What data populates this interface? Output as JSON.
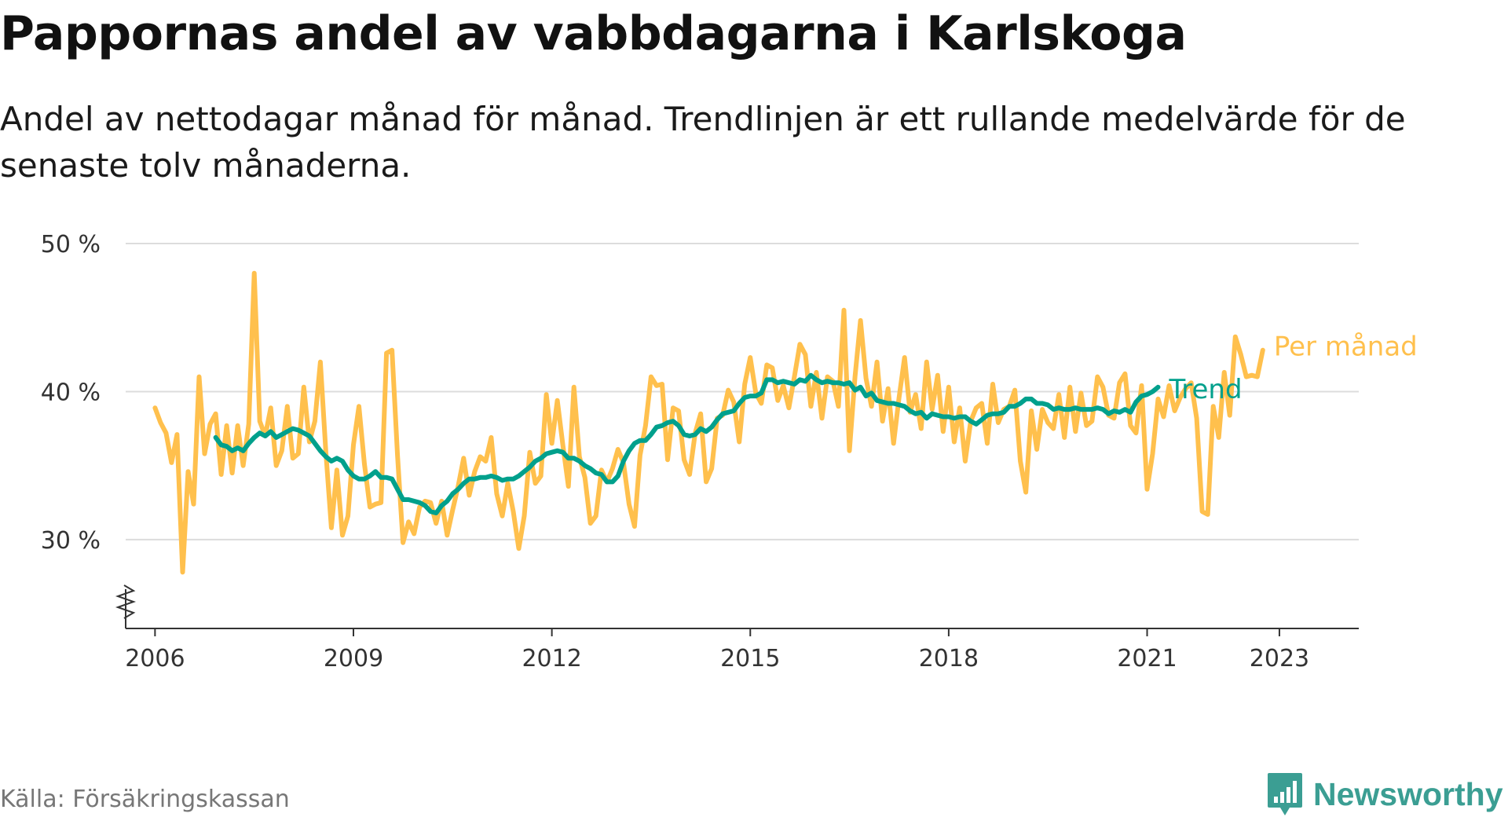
{
  "title": "Pappornas andel av vabbdagarna i Karlskoga",
  "subtitle": "Andel av nettodagar månad för månad. Trendlinjen är ett rullande medelvärde för de senaste tolv månaderna.",
  "source": "Källa: Försäkringskassan",
  "brand": {
    "name": "Newsworthy",
    "icon": "bar-chart-speech-bubble-icon"
  },
  "colors": {
    "monthly": "#ffc04d",
    "trend": "#00a08c",
    "grid": "#dcdcdc",
    "axis": "#333333"
  },
  "chart_data": {
    "type": "line",
    "ylim": [
      24,
      50
    ],
    "yticks": [
      {
        "value": 30,
        "label": "30 %"
      },
      {
        "value": 40,
        "label": "40 %"
      },
      {
        "value": 50,
        "label": "50 %"
      }
    ],
    "xlim": [
      2005.2,
      2024.2
    ],
    "xticks": [
      {
        "value": 2006,
        "label": "2006"
      },
      {
        "value": 2009,
        "label": "2009"
      },
      {
        "value": 2012,
        "label": "2012"
      },
      {
        "value": 2015,
        "label": "2015"
      },
      {
        "value": 2018,
        "label": "2018"
      },
      {
        "value": 2021,
        "label": "2021"
      },
      {
        "value": 2023,
        "label": "2023"
      }
    ],
    "grid": true,
    "axis_break": true,
    "series": [
      {
        "name": "Per månad",
        "start": 2006.0,
        "step": 0.08333,
        "values": [
          38.9,
          37.9,
          37.2,
          35.2,
          37.1,
          27.8,
          34.6,
          32.4,
          41.0,
          35.8,
          37.8,
          38.5,
          34.4,
          37.7,
          34.5,
          37.7,
          35.0,
          37.8,
          48.0,
          38.0,
          37.0,
          38.9,
          35.0,
          36.0,
          39.0,
          35.5,
          35.8,
          40.3,
          36.6,
          38.0,
          42.0,
          35.9,
          30.8,
          34.7,
          30.3,
          31.6,
          36.4,
          39.0,
          35.1,
          32.2,
          32.4,
          32.5,
          42.6,
          42.8,
          35.7,
          29.8,
          31.2,
          30.4,
          32.2,
          32.6,
          32.5,
          31.1,
          32.6,
          30.3,
          32.0,
          33.6,
          35.5,
          33.0,
          34.6,
          35.6,
          35.3,
          36.9,
          33.1,
          31.6,
          33.8,
          31.9,
          29.4,
          31.6,
          35.9,
          33.8,
          34.3,
          39.8,
          36.5,
          39.4,
          36.4,
          33.6,
          40.3,
          35.6,
          34.2,
          31.1,
          31.6,
          34.7,
          33.9,
          34.8,
          36.1,
          35.2,
          32.4,
          30.9,
          35.7,
          37.7,
          41.0,
          40.4,
          40.5,
          35.4,
          38.9,
          38.7,
          35.4,
          34.4,
          37.2,
          38.5,
          33.9,
          34.8,
          38.2,
          38.4,
          40.1,
          39.3,
          36.6,
          40.5,
          42.3,
          39.9,
          39.2,
          41.8,
          41.6,
          39.4,
          40.4,
          38.9,
          41.0,
          43.2,
          42.5,
          39.0,
          41.3,
          38.2,
          41.0,
          40.7,
          39.0,
          45.5,
          36.0,
          41.0,
          44.8,
          40.9,
          39.0,
          42.0,
          38.0,
          40.2,
          36.5,
          39.6,
          42.3,
          38.6,
          39.8,
          37.5,
          42.0,
          38.8,
          41.1,
          37.3,
          40.3,
          36.6,
          38.9,
          35.3,
          38.0,
          38.9,
          39.2,
          36.5,
          40.5,
          37.9,
          38.8,
          39.0,
          40.1,
          35.3,
          33.2,
          38.7,
          36.1,
          38.8,
          37.9,
          37.5,
          39.8,
          36.9,
          40.3,
          37.3,
          39.9,
          37.7,
          38.0,
          41.0,
          40.3,
          38.4,
          38.2,
          40.6,
          41.2,
          37.7,
          37.2,
          40.4,
          33.4,
          35.8,
          39.5,
          38.3,
          40.4,
          38.7,
          39.6,
          40.2,
          40.6,
          38.2,
          31.9,
          31.7,
          39.0,
          36.9,
          41.3,
          38.4,
          43.7,
          42.5,
          41.0,
          41.1,
          41.0,
          42.8
        ]
      },
      {
        "name": "Trend",
        "start": 2006.9167,
        "step": 0.08333,
        "values": [
          36.9,
          36.4,
          36.3,
          36.0,
          36.2,
          36.0,
          36.5,
          36.9,
          37.2,
          37.0,
          37.3,
          36.9,
          37.1,
          37.3,
          37.5,
          37.4,
          37.2,
          37.0,
          36.5,
          36.0,
          35.6,
          35.3,
          35.5,
          35.3,
          34.7,
          34.3,
          34.1,
          34.1,
          34.3,
          34.6,
          34.2,
          34.2,
          34.1,
          33.4,
          32.7,
          32.7,
          32.6,
          32.5,
          32.3,
          31.9,
          31.8,
          32.3,
          32.6,
          33.1,
          33.4,
          33.8,
          34.1,
          34.1,
          34.2,
          34.2,
          34.3,
          34.2,
          34.0,
          34.1,
          34.1,
          34.3,
          34.6,
          34.9,
          35.3,
          35.5,
          35.8,
          35.9,
          36.0,
          35.9,
          35.5,
          35.5,
          35.3,
          35.0,
          34.8,
          34.5,
          34.4,
          33.9,
          33.9,
          34.3,
          35.3,
          36.0,
          36.5,
          36.7,
          36.7,
          37.1,
          37.6,
          37.7,
          37.9,
          38.0,
          37.7,
          37.1,
          37.0,
          37.1,
          37.5,
          37.3,
          37.6,
          38.1,
          38.5,
          38.6,
          38.7,
          39.2,
          39.6,
          39.7,
          39.7,
          39.9,
          40.8,
          40.8,
          40.6,
          40.7,
          40.6,
          40.5,
          40.8,
          40.7,
          41.1,
          40.8,
          40.6,
          40.7,
          40.6,
          40.6,
          40.5,
          40.6,
          40.1,
          40.3,
          39.7,
          39.9,
          39.4,
          39.3,
          39.2,
          39.2,
          39.1,
          39.0,
          38.7,
          38.5,
          38.6,
          38.2,
          38.5,
          38.4,
          38.3,
          38.3,
          38.2,
          38.3,
          38.3,
          38.0,
          37.8,
          38.1,
          38.4,
          38.5,
          38.5,
          38.6,
          39.0,
          39.0,
          39.2,
          39.5,
          39.5,
          39.2,
          39.2,
          39.1,
          38.8,
          38.9,
          38.8,
          38.8,
          38.9,
          38.8,
          38.8,
          38.8,
          38.9,
          38.8,
          38.5,
          38.7,
          38.6,
          38.8,
          38.6,
          39.3,
          39.7,
          39.8,
          40.0,
          40.3
        ]
      }
    ]
  }
}
